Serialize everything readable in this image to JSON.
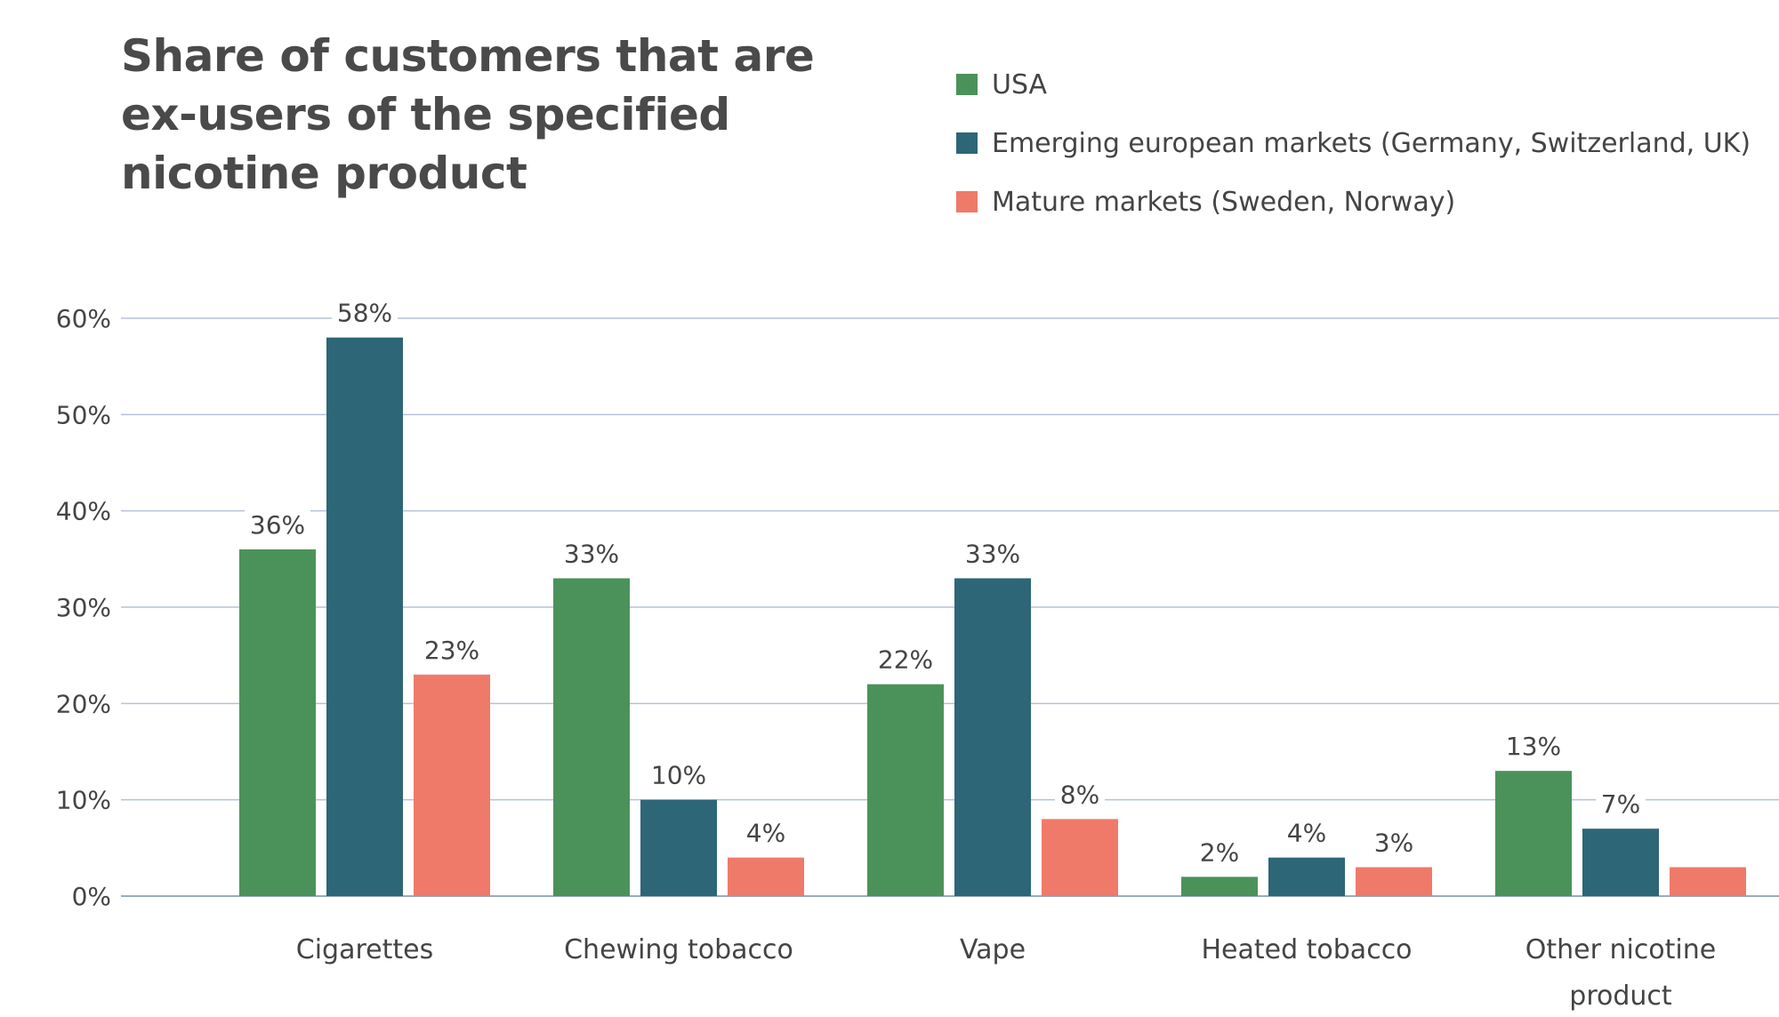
{
  "chart_data": {
    "type": "bar",
    "title": "Share of customers that are ex-users of the specified nicotine product",
    "categories": [
      "Cigarettes",
      "Chewing tobacco",
      "Vape",
      "Heated tobacco",
      "Other nicotine product"
    ],
    "series": [
      {
        "name": "USA",
        "color": "#4b925a",
        "values": [
          36,
          33,
          22,
          2,
          13
        ],
        "labels": [
          "36%",
          "33%",
          "22%",
          "2%",
          "13%"
        ]
      },
      {
        "name": "Emerging european markets (Germany, Switzerland, UK)",
        "color": "#2d6677",
        "values": [
          58,
          10,
          33,
          4,
          7
        ],
        "labels": [
          "58%",
          "10%",
          "33%",
          "4%",
          "7%"
        ]
      },
      {
        "name": "Mature markets (Sweden, Norway)",
        "color": "#ef7a69",
        "values": [
          23,
          4,
          8,
          3,
          3
        ],
        "labels": [
          "23%",
          "4%",
          "8%",
          "3%",
          ""
        ]
      }
    ],
    "ylim": [
      0,
      60
    ],
    "yticks": [
      0,
      10,
      20,
      30,
      40,
      50,
      60
    ],
    "ytick_labels": [
      "0%",
      "10%",
      "20%",
      "30%",
      "40%",
      "50%",
      "60%"
    ],
    "grid": true,
    "legend_position": "top-right",
    "xlabel": "",
    "ylabel": ""
  }
}
